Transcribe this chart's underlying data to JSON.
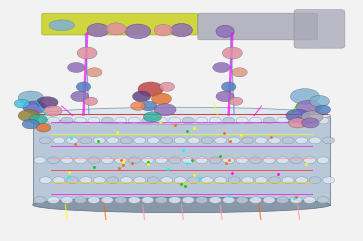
{
  "background_color": "#f2f2f2",
  "cylinder_color": "#b8c8d8",
  "cylinder_highlight": "#dde8f0",
  "cylinder_shadow": "#8898a8",
  "protein_colors": {
    "yellow_green": "#c8d020",
    "pink": "#e090a0",
    "purple": "#9070b8",
    "blue": "#5080c0",
    "orange": "#e07030",
    "magenta": "#e030a0",
    "teal": "#30b0a0",
    "gray": "#a8a8b8",
    "red": "#c04040",
    "green": "#40a040",
    "blue_purple": "#6060c0",
    "salmon": "#e09880",
    "light_blue": "#80b0d0",
    "dark_purple": "#604080",
    "olive": "#908030"
  },
  "accent_lines": {
    "magenta": "#ff00ff",
    "yellow": "#ffff00",
    "red": "#ff2020",
    "cyan": "#00ffff",
    "green": "#00cc00"
  }
}
